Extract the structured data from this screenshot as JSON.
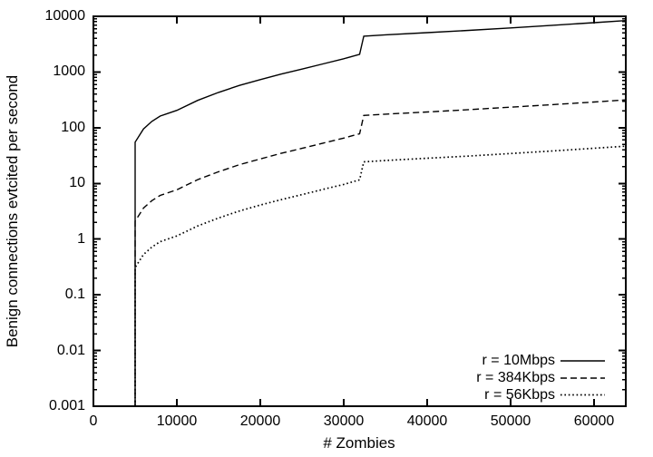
{
  "chart_data": {
    "type": "line",
    "title": "",
    "xlabel": "# Zombies",
    "ylabel": "Benign connections evtcited per second",
    "x_scale": "linear",
    "y_scale": "log",
    "xlim": [
      0,
      63800
    ],
    "ylim": [
      0.001,
      10000
    ],
    "x_ticks": [
      0,
      10000,
      20000,
      30000,
      40000,
      50000,
      60000
    ],
    "x_tick_labels": [
      "0",
      "10000",
      "20000",
      "30000",
      "40000",
      "50000",
      "60000"
    ],
    "y_ticks": [
      10000,
      1000,
      100,
      10,
      1,
      0.1,
      0.01,
      0.001
    ],
    "y_tick_labels": [
      "10000",
      "1000",
      "100",
      "10",
      "1",
      "0.1",
      "0.01",
      "0.001"
    ],
    "y_minor_mantissas": [
      2,
      3,
      4,
      5,
      6,
      7,
      8,
      9
    ],
    "grid": false,
    "legend_position": "bottom-right",
    "axis_color": "#000000",
    "background_color": "#ffffff",
    "series": [
      {
        "name": "r = 10Mbps",
        "style": "solid",
        "color": "#000000",
        "x": [
          5000,
          5000,
          6000,
          7000,
          8000,
          10000,
          12500,
          15000,
          17500,
          20000,
          22500,
          25000,
          27500,
          30000,
          31900,
          32400,
          35000,
          40000,
          45000,
          50000,
          55000,
          60000,
          63800
        ],
        "y": [
          0.001,
          55,
          95,
          130,
          162,
          205,
          310,
          430,
          575,
          730,
          920,
          1130,
          1400,
          1730,
          2080,
          4400,
          4650,
          5100,
          5600,
          6200,
          6900,
          7700,
          8400
        ]
      },
      {
        "name": "r = 384Kbps",
        "style": "dashed",
        "color": "#000000",
        "x": [
          5000,
          5000,
          6000,
          7000,
          8000,
          10000,
          12500,
          15000,
          17500,
          20000,
          22500,
          25000,
          27500,
          30000,
          31900,
          32400,
          35000,
          40000,
          45000,
          50000,
          55000,
          60000,
          63800
        ],
        "y": [
          0.001,
          2.1,
          3.6,
          4.9,
          6.1,
          7.7,
          11.7,
          16.2,
          21.7,
          27.5,
          34.7,
          42.6,
          52.8,
          65,
          78,
          166,
          175,
          192,
          211,
          234,
          260,
          290,
          317
        ]
      },
      {
        "name": "r = 56Kbps",
        "style": "dotted",
        "color": "#000000",
        "x": [
          5000,
          5000,
          6000,
          7000,
          8000,
          10000,
          12500,
          15000,
          17500,
          20000,
          22500,
          25000,
          27500,
          30000,
          31900,
          32400,
          35000,
          40000,
          45000,
          50000,
          55000,
          60000,
          63800
        ],
        "y": [
          0.001,
          0.31,
          0.53,
          0.72,
          0.9,
          1.14,
          1.72,
          2.4,
          3.2,
          4.1,
          5.1,
          6.3,
          7.8,
          9.6,
          11.6,
          24.4,
          25.8,
          28.3,
          31,
          34.4,
          38.2,
          42.8,
          46.7
        ]
      }
    ]
  }
}
